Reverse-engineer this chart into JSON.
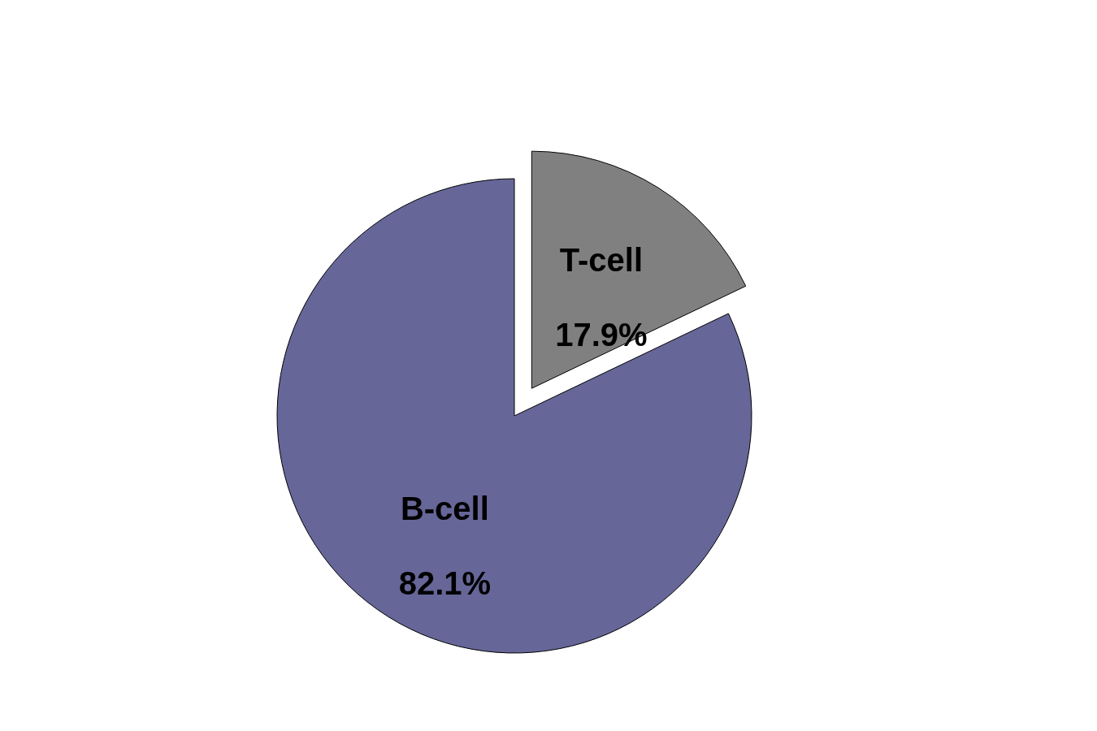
{
  "chart_data": {
    "type": "pie",
    "categories": [
      "T-cell",
      "B-cell"
    ],
    "values": [
      17.9,
      82.1
    ],
    "colors": [
      "#808080",
      "#666699"
    ],
    "value_labels": [
      "17.9%",
      "82.1%"
    ]
  }
}
